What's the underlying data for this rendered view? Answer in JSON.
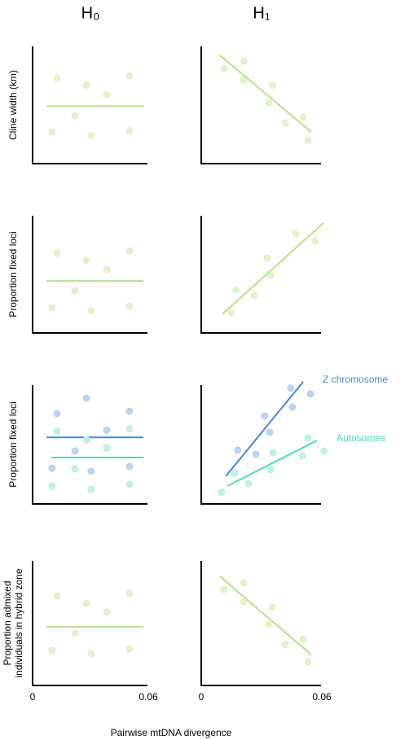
{
  "xlabel": "Pairwise mtDNA divergence",
  "chart_data": [
    {
      "type": "scatter",
      "title": "H₀",
      "ylabel": [
        "Cline width (km)"
      ],
      "xlim": [
        0,
        0.06
      ],
      "ylim": [
        0,
        1
      ],
      "series": [
        {
          "color": "#e0f3c9",
          "line_color": "#b7e18c",
          "x": [
            0.0127,
            0.0279,
            0.0385,
            0.0503,
            0.022,
            0.0101,
            0.0304,
            0.0503
          ],
          "y": [
            0.73,
            0.67,
            0.59,
            0.75,
            0.41,
            0.27,
            0.24,
            0.28
          ],
          "fit_x": [
            0.0072,
            0.0575
          ],
          "fit_y": [
            0.49,
            0.49
          ]
        }
      ]
    },
    {
      "type": "scatter",
      "title": "H₁",
      "xlim": [
        0,
        0.06
      ],
      "ylim": [
        0,
        1
      ],
      "series": [
        {
          "color": "#e0f3c9",
          "line_color": "#b7e18c",
          "x": [
            0.0114,
            0.0211,
            0.0211,
            0.0353,
            0.0336,
            0.0418,
            0.0507,
            0.0532
          ],
          "y": [
            0.81,
            0.875,
            0.715,
            0.667,
            0.52,
            0.347,
            0.396,
            0.2
          ],
          "fit_x": [
            0.0093,
            0.0547
          ],
          "fit_y": [
            0.924,
            0.271
          ]
        }
      ]
    },
    {
      "type": "scatter",
      "ylabel": [
        "Proportion fixed loci"
      ],
      "xlim": [
        0,
        0.06
      ],
      "ylim": [
        0,
        1
      ],
      "series": [
        {
          "color": "#e0f3c9",
          "line_color": "#b7e18c",
          "x": [
            0.0127,
            0.0279,
            0.0385,
            0.0503,
            0.022,
            0.0101,
            0.0304,
            0.0503
          ],
          "y": [
            0.68,
            0.62,
            0.54,
            0.7,
            0.36,
            0.215,
            0.19,
            0.23
          ],
          "fit_x": [
            0.0072,
            0.0575
          ],
          "fit_y": [
            0.444,
            0.444
          ]
        }
      ]
    },
    {
      "type": "scatter",
      "xlim": [
        0,
        0.06
      ],
      "ylim": [
        0,
        1
      ],
      "series": [
        {
          "color": "#e0f3c9",
          "line_color": "#b7e18c",
          "x": [
            0.015,
            0.0174,
            0.0264,
            0.0328,
            0.0345,
            0.047,
            0.0568
          ],
          "y": [
            0.174,
            0.368,
            0.319,
            0.639,
            0.493,
            0.847,
            0.785
          ],
          "fit_x": [
            0.0105,
            0.0608
          ],
          "fit_y": [
            0.16,
            0.938
          ]
        }
      ]
    },
    {
      "type": "scatter",
      "ylabel": [
        "Proportion fixed loci"
      ],
      "xlim": [
        0,
        0.06
      ],
      "ylim": [
        0,
        1
      ],
      "series": [
        {
          "color": "#bcd2f1",
          "line_color": "#4a88d0",
          "x": [
            0.0127,
            0.0279,
            0.0385,
            0.0503,
            0.022,
            0.0101,
            0.0304,
            0.0503
          ],
          "y": [
            0.76,
            0.89,
            0.62,
            0.78,
            0.445,
            0.3,
            0.274,
            0.315
          ],
          "fit_x": [
            0.0072,
            0.0575
          ],
          "fit_y": [
            0.56,
            0.56
          ]
        },
        {
          "color": "#bff2df",
          "line_color": "#4fd8b6",
          "x": [
            0.0127,
            0.0279,
            0.0385,
            0.0503,
            0.022,
            0.0101,
            0.0304,
            0.0503
          ],
          "y": [
            0.61,
            0.54,
            0.47,
            0.63,
            0.295,
            0.15,
            0.123,
            0.164
          ],
          "fit_x": [
            0.0097,
            0.0575
          ],
          "fit_y": [
            0.39,
            0.39
          ]
        }
      ]
    },
    {
      "type": "scatter",
      "xlim": [
        0,
        0.06
      ],
      "ylim": [
        0,
        1
      ],
      "series": [
        {
          "name": "Z chromosome",
          "color": "#bcd2f1",
          "line_color": "#4a88d0",
          "x": [
            0.0446,
            0.0543,
            0.0454,
            0.0316,
            0.0341,
            0.0182,
            0.0272,
            0.0166
          ],
          "y": [
            0.973,
            0.925,
            0.815,
            0.74,
            0.603,
            0.452,
            0.418,
            0.26
          ],
          "fit_x": [
            0.0122,
            0.0507
          ],
          "fit_y": [
            0.233,
            1.027
          ]
        },
        {
          "name": "Autosomes",
          "color": "#bff2df",
          "line_color": "#4fd8b6",
          "x": [
            0.0612,
            0.0531,
            0.0503,
            0.0357,
            0.0345,
            0.0235,
            0.0162,
            0.0101
          ],
          "y": [
            0.445,
            0.555,
            0.404,
            0.432,
            0.288,
            0.171,
            0.26,
            0.096
          ],
          "fit_x": [
            0.013,
            0.0576
          ],
          "fit_y": [
            0.151,
            0.534
          ]
        }
      ]
    },
    {
      "type": "scatter",
      "ylabel": [
        "Proportion admixed",
        "individuals in hybrid zone"
      ],
      "xlim": [
        0,
        0.06
      ],
      "ylim": [
        0,
        1
      ],
      "xticks": [
        0,
        0.06
      ],
      "series": [
        {
          "color": "#e0f3c9",
          "line_color": "#b7e18c",
          "x": [
            0.0127,
            0.0279,
            0.0385,
            0.0503,
            0.022,
            0.0101,
            0.0304,
            0.0503
          ],
          "y": [
            0.719,
            0.66,
            0.588,
            0.739,
            0.418,
            0.281,
            0.255,
            0.294
          ],
          "fit_x": [
            0.0072,
            0.0575
          ],
          "fit_y": [
            0.471,
            0.471
          ]
        }
      ]
    },
    {
      "type": "scatter",
      "xlim": [
        0,
        0.06
      ],
      "ylim": [
        0,
        1
      ],
      "xticks": [
        0,
        0.06
      ],
      "series": [
        {
          "color": "#e0f3c9",
          "line_color": "#b7e18c",
          "x": [
            0.0114,
            0.0211,
            0.0211,
            0.0353,
            0.0336,
            0.0418,
            0.0507,
            0.0532
          ],
          "y": [
            0.771,
            0.824,
            0.673,
            0.627,
            0.49,
            0.327,
            0.373,
            0.19
          ],
          "fit_x": [
            0.0093,
            0.0547
          ],
          "fit_y": [
            0.876,
            0.248
          ]
        }
      ]
    }
  ]
}
